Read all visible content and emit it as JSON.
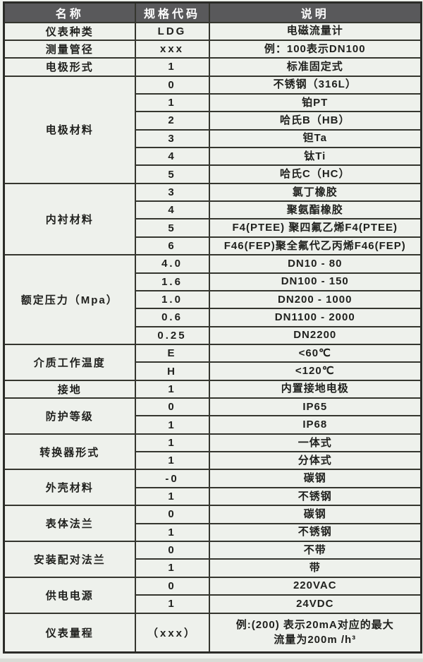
{
  "page": {
    "header_bg": "#59595b",
    "header_text_color": "#ffffff",
    "cell_bg": "#eef1ec",
    "border_color": "#35362f",
    "text_color": "#20211e"
  },
  "table": {
    "columns": [
      "名称",
      "规格代码",
      "说明"
    ],
    "groups": [
      {
        "name": "仪表种类",
        "rows": [
          {
            "code": "LDG",
            "desc": "电磁流量计"
          }
        ]
      },
      {
        "name": "测量管径",
        "rows": [
          {
            "code": "xxx",
            "desc": "例：100表示DN100"
          }
        ]
      },
      {
        "name": "电极形式",
        "rows": [
          {
            "code": "1",
            "desc": "标准固定式"
          }
        ]
      },
      {
        "name": "电极材料",
        "rows": [
          {
            "code": "0",
            "desc": "不锈钢（316L）"
          },
          {
            "code": "1",
            "desc": "铂PT"
          },
          {
            "code": "2",
            "desc": "哈氏B（HB）"
          },
          {
            "code": "3",
            "desc": "钽Ta"
          },
          {
            "code": "4",
            "desc": "钛Ti"
          },
          {
            "code": "5",
            "desc": "哈氏C（HC）"
          }
        ]
      },
      {
        "name": "内衬材料",
        "rows": [
          {
            "code": "3",
            "desc": "氯丁橡胶"
          },
          {
            "code": "4",
            "desc": "聚氨酯橡胶"
          },
          {
            "code": "5",
            "desc": "F4(PTEE) 聚四氟乙烯F4(PTEE)"
          },
          {
            "code": "6",
            "desc": "F46(FEP)聚全氟代乙丙烯F46(FEP)"
          }
        ]
      },
      {
        "name": "额定压力（Mpa）",
        "rows": [
          {
            "code": "4.0",
            "desc": "DN10 - 80"
          },
          {
            "code": "1.6",
            "desc": "DN100 - 150"
          },
          {
            "code": "1.0",
            "desc": "DN200 - 1000"
          },
          {
            "code": "0.6",
            "desc": "DN1100 - 2000"
          },
          {
            "code": "0.25",
            "desc": "DN2200"
          }
        ]
      },
      {
        "name": "介质工作温度",
        "rows": [
          {
            "code": "E",
            "desc": "<60℃"
          },
          {
            "code": "H",
            "desc": "<120℃"
          }
        ]
      },
      {
        "name": "接地",
        "rows": [
          {
            "code": "1",
            "desc": "内置接地电极"
          }
        ]
      },
      {
        "name": "防护等级",
        "rows": [
          {
            "code": "0",
            "desc": "IP65"
          },
          {
            "code": "1",
            "desc": "IP68"
          }
        ]
      },
      {
        "name": "转换器形式",
        "rows": [
          {
            "code": "1",
            "desc": "一体式"
          },
          {
            "code": "1",
            "desc": "分体式"
          }
        ]
      },
      {
        "name": "外壳材料",
        "rows": [
          {
            "code": "-0",
            "desc": "碳钢"
          },
          {
            "code": "1",
            "desc": "不锈钢"
          }
        ]
      },
      {
        "name": "表体法兰",
        "rows": [
          {
            "code": "0",
            "desc": "碳钢"
          },
          {
            "code": "1",
            "desc": "不锈钢"
          }
        ]
      },
      {
        "name": "安装配对法兰",
        "rows": [
          {
            "code": "0",
            "desc": "不带"
          },
          {
            "code": "1",
            "desc": "带"
          }
        ]
      },
      {
        "name": "供电电源",
        "rows": [
          {
            "code": "0",
            "desc": "220VAC"
          },
          {
            "code": "1",
            "desc": "24VDC"
          }
        ]
      },
      {
        "name": "仪表量程",
        "rows": [
          {
            "code": "（xxx）",
            "desc": "例:(200) 表示20mA对应的最大\n流量为200m /h³",
            "tall": true
          }
        ]
      }
    ]
  }
}
